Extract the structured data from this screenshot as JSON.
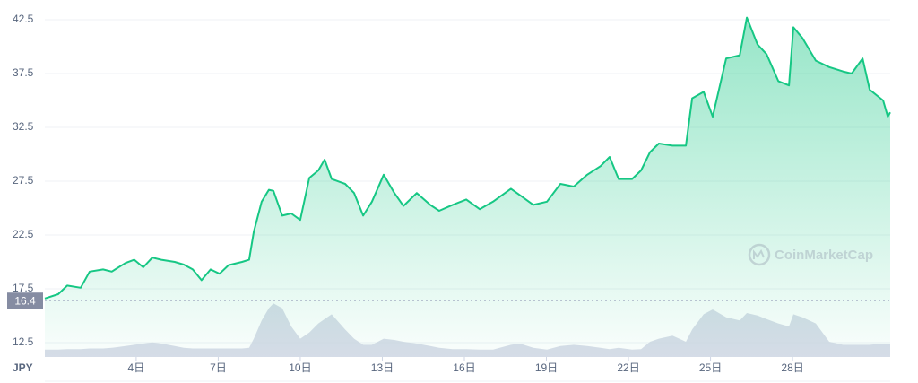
{
  "chart_data": {
    "type": "area",
    "currency": "JPY",
    "watermark": "CoinMarketCap",
    "price_label": 16.4,
    "x": [
      0.66,
      1.15,
      1.48,
      1.97,
      2.3,
      2.79,
      3.11,
      3.61,
      3.93,
      4.26,
      4.59,
      4.92,
      5.41,
      5.74,
      6.07,
      6.39,
      6.72,
      7.05,
      7.38,
      7.87,
      8.13,
      8.3,
      8.59,
      8.85,
      9.02,
      9.34,
      9.67,
      10.0,
      10.33,
      10.66,
      10.89,
      11.15,
      11.64,
      11.97,
      12.3,
      12.62,
      13.05,
      13.44,
      13.77,
      14.26,
      14.75,
      15.08,
      15.57,
      16.07,
      16.56,
      17.05,
      17.7,
      18.03,
      18.52,
      19.02,
      19.51,
      20.0,
      20.49,
      20.98,
      21.31,
      21.64,
      22.13,
      22.46,
      22.79,
      23.11,
      23.61,
      24.1,
      24.33,
      24.75,
      25.08,
      25.57,
      26.07,
      26.33,
      26.72,
      27.05,
      27.48,
      27.87,
      28.03,
      28.36,
      28.85,
      29.34,
      29.84,
      30.16,
      30.56,
      30.82,
      31.31,
      31.48,
      31.57
    ],
    "series": [
      {
        "color": "#16c784",
        "values": [
          16.6,
          17.0,
          17.8,
          17.6,
          19.1,
          19.3,
          19.1,
          19.9,
          20.2,
          19.5,
          20.4,
          20.2,
          20.0,
          19.75,
          19.3,
          18.3,
          19.3,
          18.9,
          19.7,
          20.0,
          20.2,
          22.8,
          25.6,
          26.7,
          26.6,
          24.3,
          24.5,
          23.9,
          27.8,
          28.5,
          29.5,
          27.7,
          27.25,
          26.4,
          24.3,
          25.6,
          28.1,
          26.4,
          25.2,
          26.4,
          25.3,
          24.75,
          25.3,
          25.8,
          24.9,
          25.6,
          26.8,
          26.2,
          25.3,
          25.6,
          27.25,
          27.0,
          28.1,
          28.9,
          29.75,
          27.7,
          27.7,
          28.5,
          30.2,
          31.0,
          30.8,
          30.8,
          35.2,
          35.8,
          33.5,
          38.9,
          39.2,
          42.7,
          40.2,
          39.3,
          36.8,
          36.4,
          41.8,
          40.8,
          38.7,
          38.1,
          37.7,
          37.5,
          38.9,
          36.0,
          35.0,
          33.5,
          33.9
        ]
      },
      {
        "color": "#cfd5e3",
        "axis": "y2",
        "values": [
          12,
          12,
          13,
          13,
          14,
          14,
          15,
          18,
          20,
          22,
          24,
          22,
          18,
          15,
          14,
          14,
          14,
          14,
          14,
          14,
          15,
          30,
          60,
          80,
          88,
          80,
          50,
          30,
          40,
          55,
          62,
          70,
          45,
          30,
          20,
          20,
          30,
          28,
          25,
          22,
          18,
          15,
          13,
          13,
          12,
          12,
          20,
          22,
          15,
          12,
          18,
          20,
          18,
          15,
          13,
          15,
          12,
          13,
          25,
          30,
          35,
          25,
          45,
          70,
          78,
          65,
          60,
          72,
          68,
          62,
          55,
          50,
          70,
          65,
          55,
          25,
          20,
          20,
          20,
          20,
          22,
          22,
          22
        ]
      }
    ],
    "xlim": [
      0.66,
      31.57
    ],
    "xticks": [
      {
        "value": 4,
        "label": "4日"
      },
      {
        "value": 7,
        "label": "7日"
      },
      {
        "value": 10,
        "label": "10日"
      },
      {
        "value": 13,
        "label": "13日"
      },
      {
        "value": 16,
        "label": "16日"
      },
      {
        "value": 19,
        "label": "19日"
      },
      {
        "value": 22,
        "label": "22日"
      },
      {
        "value": 25,
        "label": "25日"
      },
      {
        "value": 28,
        "label": "28日"
      }
    ],
    "ylim": [
      11.17,
      43.83
    ],
    "yticks": [
      12.5,
      17.5,
      22.5,
      27.5,
      32.5,
      37.5,
      42.5
    ],
    "y2lim": [
      0,
      100
    ],
    "grid": true
  }
}
